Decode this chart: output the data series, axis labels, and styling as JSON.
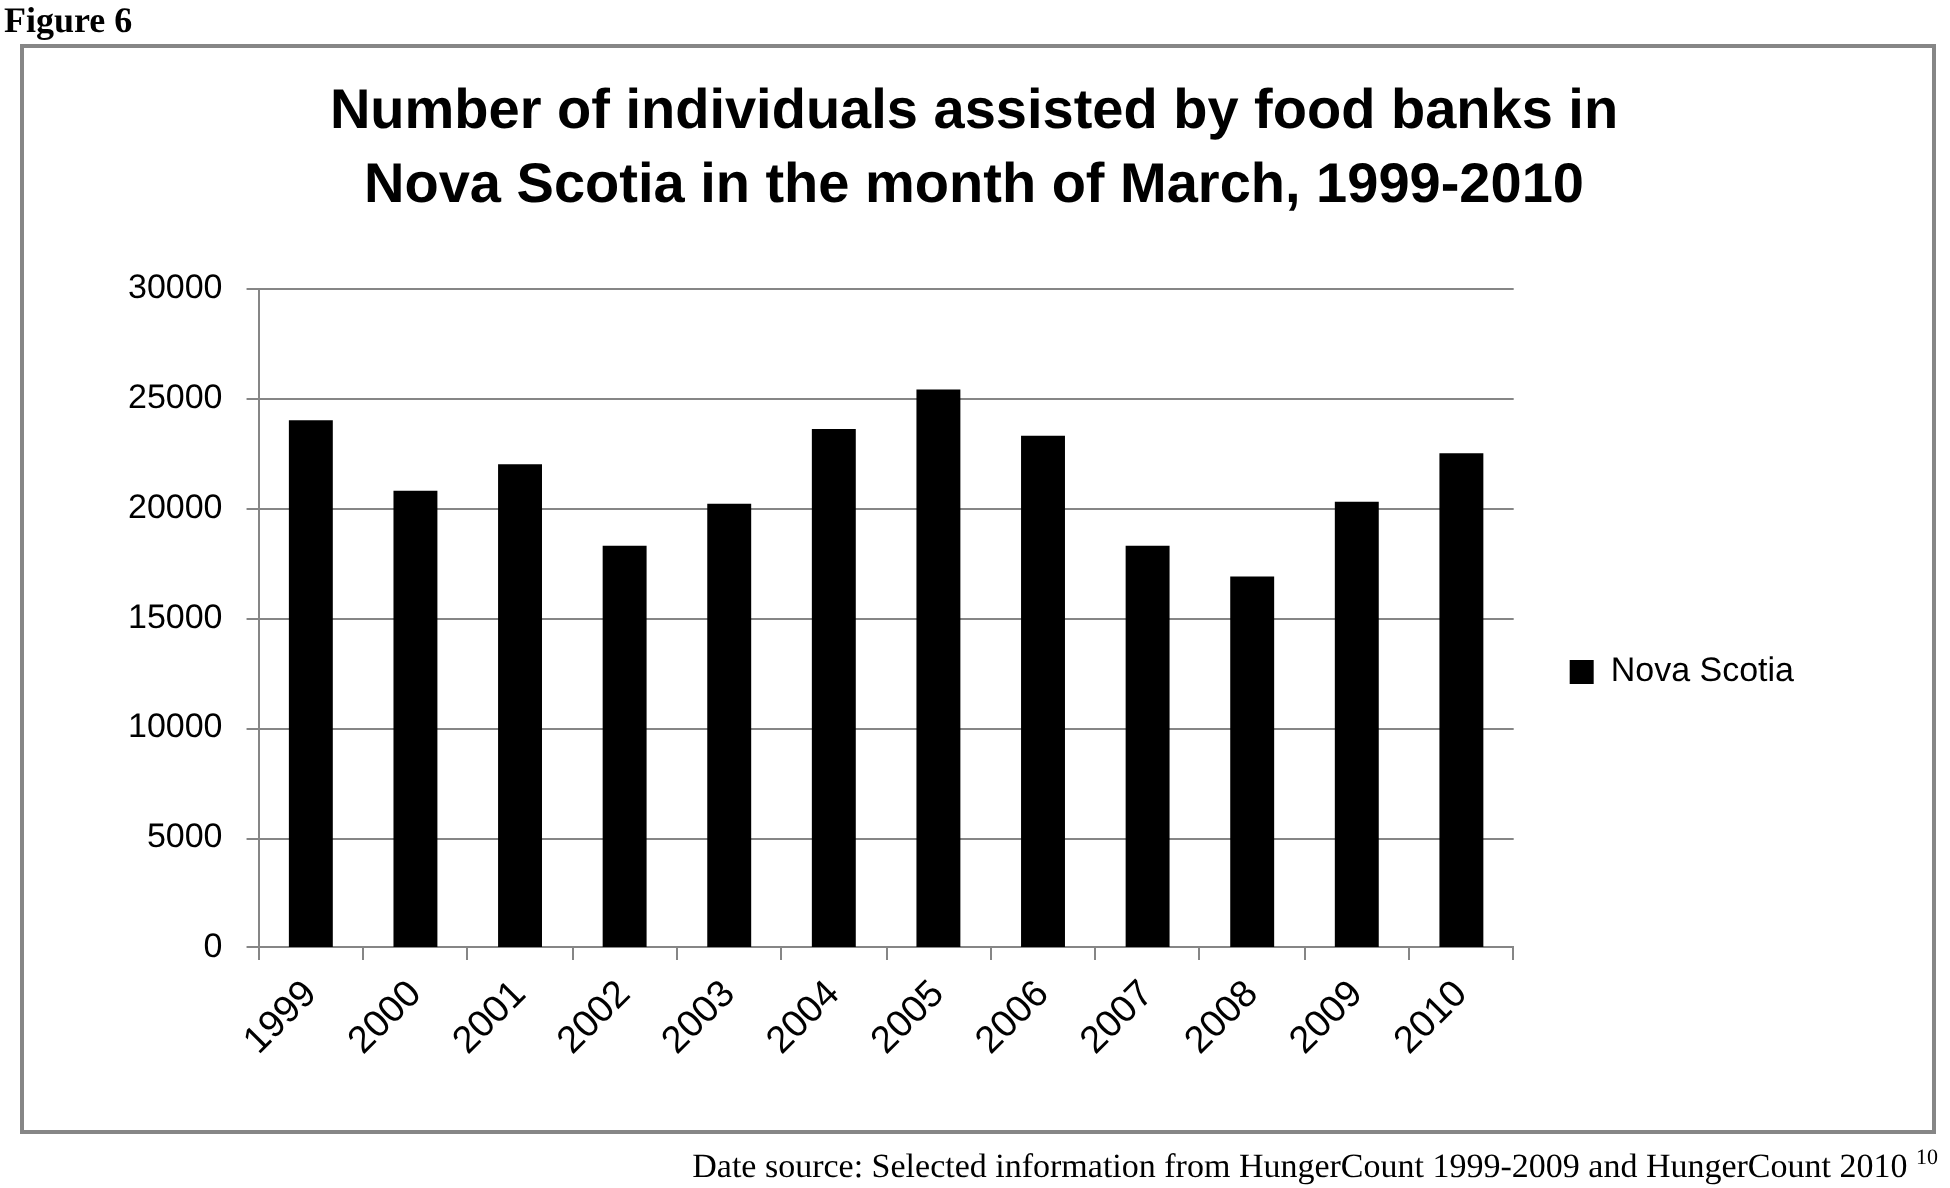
{
  "chart_data": {
    "type": "bar",
    "title": "Number of individuals assisted by food banks in Nova Scotia in the month of March, 1999-2010",
    "categories": [
      "1999",
      "2000",
      "2001",
      "2002",
      "2003",
      "2004",
      "2005",
      "2006",
      "2007",
      "2008",
      "2009",
      "2010"
    ],
    "series": [
      {
        "name": "Nova Scotia",
        "color": "#000000",
        "values": [
          24000,
          20800,
          22000,
          18300,
          20200,
          23600,
          25400,
          23300,
          18300,
          16900,
          20300,
          22500
        ]
      }
    ],
    "ylim": [
      0,
      30000
    ],
    "yticks": [
      0,
      5000,
      10000,
      15000,
      20000,
      25000,
      30000
    ],
    "grid": "y",
    "legend": "right",
    "annotations": [
      "Figure 6",
      "Date source: Selected information from HungerCount 1999-2009 and HungerCount 2010 $^{10}$"
    ]
  }
}
